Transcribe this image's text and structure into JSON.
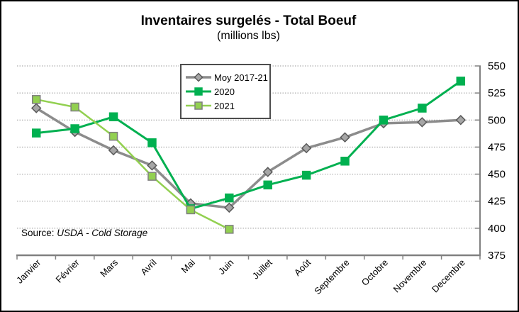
{
  "title": "Inventaires surgelés - Total Boeuf",
  "subtitle": "(millions lbs)",
  "source": {
    "prefix": "Source: ",
    "text": "USDA - Cold Storage"
  },
  "chart_data": {
    "type": "line",
    "title": "Inventaires surgelés - Total Boeuf",
    "subtitle": "(millions lbs)",
    "categories": [
      "Janvier",
      "Février",
      "Mars",
      "Avril",
      "Mai",
      "Juin",
      "Juillet",
      "Août",
      "Septembre",
      "Octobre",
      "Novembre",
      "Decembre"
    ],
    "ylim": [
      375,
      550
    ],
    "yticks": [
      375,
      400,
      425,
      450,
      475,
      500,
      525,
      550
    ],
    "grid": "horizontal-dotted",
    "legend_position": "inside-top-center",
    "axis_color": "#808080",
    "grid_color": "#999999",
    "series": [
      {
        "name": "Moy 2017-21",
        "marker": "diamond",
        "line_color": "#8c8c8c",
        "marker_fill": "#a6a6a6",
        "marker_stroke": "#595959",
        "line_width": 3.5,
        "values": [
          511,
          489,
          472,
          458,
          423,
          419,
          452,
          474,
          484,
          497,
          498,
          500
        ]
      },
      {
        "name": "2020",
        "marker": "square",
        "line_color": "#00b050",
        "marker_fill": "#00b050",
        "marker_stroke": "#00b050",
        "line_width": 3,
        "values": [
          488,
          492,
          503,
          479,
          418,
          428,
          440,
          449,
          462,
          500,
          511,
          536
        ]
      },
      {
        "name": "2021",
        "marker": "square",
        "line_color": "#92d050",
        "marker_fill": "#92d050",
        "marker_stroke": "#7f7f7f",
        "line_width": 2.5,
        "values": [
          519,
          512,
          485,
          448,
          417,
          399,
          null,
          null,
          null,
          null,
          null,
          null
        ]
      }
    ]
  }
}
